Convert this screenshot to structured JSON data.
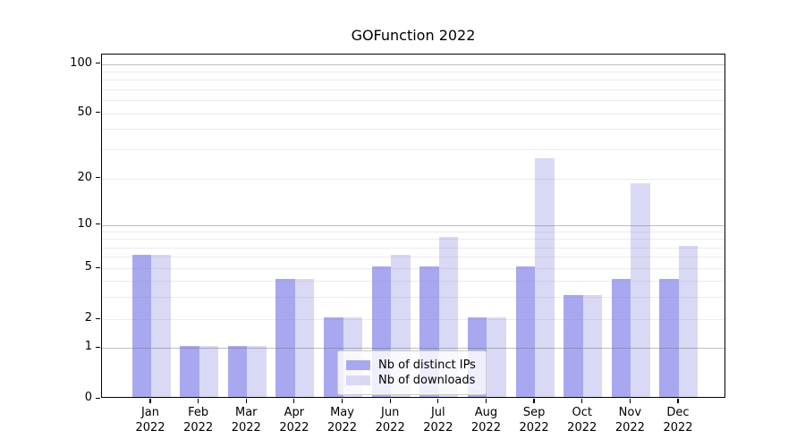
{
  "chart_data": {
    "type": "bar",
    "title": "GOFunction 2022",
    "categories": [
      "Jan",
      "Feb",
      "Mar",
      "Apr",
      "May",
      "Jun",
      "Jul",
      "Aug",
      "Sep",
      "Oct",
      "Nov",
      "Dec"
    ],
    "year": "2022",
    "series": [
      {
        "name": "Nb of distinct IPs",
        "color": "#a8a8f0",
        "values": [
          6,
          1,
          1,
          4,
          2,
          5,
          5,
          2,
          5,
          3,
          4,
          4
        ]
      },
      {
        "name": "Nb of downloads",
        "color": "#d9d9f6",
        "values": [
          6,
          1,
          1,
          4,
          2,
          6,
          8,
          2,
          26,
          3,
          18,
          7
        ]
      }
    ],
    "yscale": "symlog",
    "ylim": [
      0,
      115
    ],
    "ytick_values": [
      100,
      50,
      20,
      10,
      5,
      2,
      1,
      0
    ],
    "ytick_labels": [
      "100",
      "50",
      "20",
      "10",
      "5",
      "2",
      "1",
      "0"
    ],
    "grid": true,
    "legend_position": "lower center",
    "layout": {
      "y_anchors": [
        [
          0,
          385
        ],
        [
          1,
          328
        ],
        [
          2,
          296
        ],
        [
          5,
          239
        ],
        [
          10,
          190.7
        ],
        [
          20,
          138.5
        ],
        [
          50,
          65.7
        ],
        [
          100,
          10.7
        ]
      ],
      "major_grid_values": [
        1,
        10,
        100
      ],
      "minor_grid_values": [
        2,
        3,
        4,
        5,
        6,
        7,
        8,
        9,
        20,
        30,
        40,
        50,
        60,
        70,
        80,
        90
      ],
      "x_first": 55,
      "x_step": 53.636,
      "bar_width": 21.5
    }
  }
}
